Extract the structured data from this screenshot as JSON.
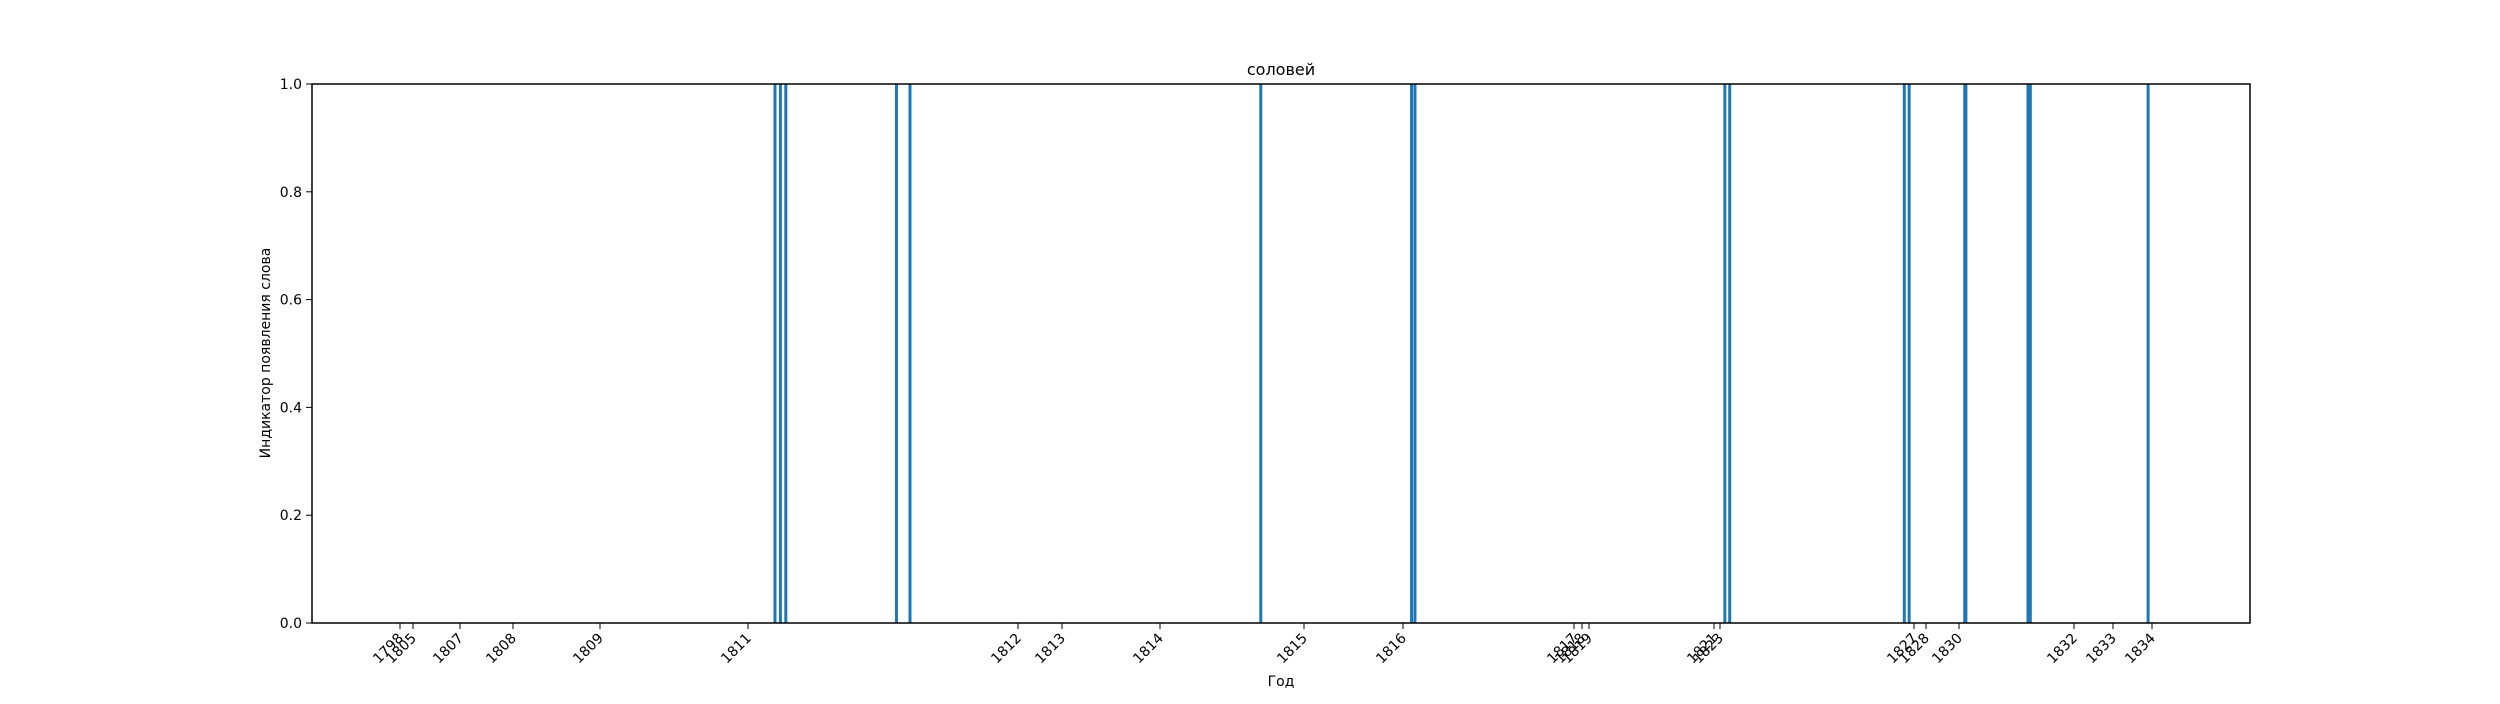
{
  "chart_data": {
    "type": "bar",
    "title": "соловей",
    "xlabel": "Год",
    "ylabel": "Индикатор появления слова",
    "ylim": [
      0,
      1
    ],
    "y_ticks": [
      0.0,
      0.2,
      0.4,
      0.6,
      0.8,
      1.0
    ],
    "y_tick_labels": [
      "0.0",
      "0.2",
      "0.4",
      "0.6",
      "0.8",
      "1.0"
    ],
    "x_ticks": [
      {
        "label": "1798",
        "x": 1798.0
      },
      {
        "label": "1805",
        "x": 1805.0
      },
      {
        "label": "1807",
        "x": 1807.0
      },
      {
        "label": "1808",
        "x": 1808.0
      },
      {
        "label": "1809",
        "x": 1809.0
      },
      {
        "label": "1811",
        "x": 1811.0
      },
      {
        "label": "1812",
        "x": 1812.0
      },
      {
        "label": "1813",
        "x": 1813.0
      },
      {
        "label": "1814",
        "x": 1814.0
      },
      {
        "label": "1815",
        "x": 1815.0
      },
      {
        "label": "1816",
        "x": 1816.0
      },
      {
        "label": "1817",
        "x": 1817.0
      },
      {
        "label": "1818",
        "x": 1818.0
      },
      {
        "label": "1819",
        "x": 1819.0
      },
      {
        "label": "1821",
        "x": 1821.0
      },
      {
        "label": "1823",
        "x": 1823.0
      },
      {
        "label": "1827",
        "x": 1827.0
      },
      {
        "label": "1828",
        "x": 1828.0
      },
      {
        "label": "1830",
        "x": 1830.0
      },
      {
        "label": "1832",
        "x": 1832.0
      },
      {
        "label": "1833",
        "x": 1833.0
      },
      {
        "label": "1834",
        "x": 1834.0
      }
    ],
    "x_tick_display_order": [
      "1798",
      "1805",
      "1807",
      "1808",
      "1809",
      "1811",
      "1812",
      "1813",
      "1814",
      "1815",
      "1816",
      "1817",
      "1818",
      "1819",
      "1821",
      "1823",
      "1827",
      "1828",
      "1830",
      "1832",
      "1833",
      "1834"
    ],
    "series": [
      {
        "color": "#1f77b4",
        "points": [
          {
            "x": 1811.1,
            "value": 1
          },
          {
            "x": 1811.12,
            "value": 1
          },
          {
            "x": 1811.14,
            "value": 1
          },
          {
            "x": 1811.55,
            "value": 1
          },
          {
            "x": 1811.6,
            "value": 1
          },
          {
            "x": 1814.7,
            "value": 1
          },
          {
            "x": 1816.05,
            "value": 1
          },
          {
            "x": 1816.07,
            "value": 1
          },
          {
            "x": 1823.1,
            "value": 1
          },
          {
            "x": 1823.2,
            "value": 1
          },
          {
            "x": 1826.8,
            "value": 1
          },
          {
            "x": 1826.9,
            "value": 1
          },
          {
            "x": 1830.1,
            "value": 1
          },
          {
            "x": 1830.12,
            "value": 1
          },
          {
            "x": 1831.2,
            "value": 1
          },
          {
            "x": 1831.22,
            "value": 1
          },
          {
            "x": 1831.24,
            "value": 1
          },
          {
            "x": 1833.9,
            "value": 1
          }
        ]
      }
    ],
    "grid": false
  }
}
